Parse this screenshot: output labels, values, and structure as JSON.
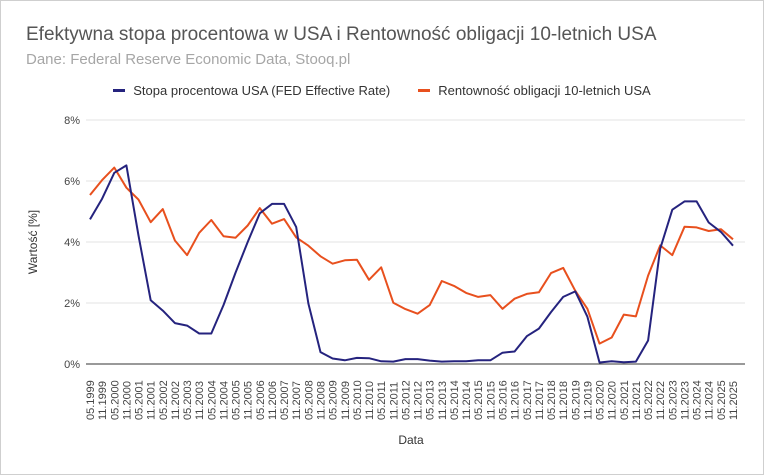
{
  "chart_data": {
    "type": "line",
    "title": "Efektywna stopa procentowa w USA i Rentowność obligacji 10-letnich USA",
    "subtitle": "Dane: Federal Reserve Economic Data, Stooq.pl",
    "xlabel": "Data",
    "ylabel": "Wartość [%]",
    "ylim": [
      0,
      8
    ],
    "yticks": [
      "0%",
      "2%",
      "4%",
      "6%",
      "8%"
    ],
    "grid": true,
    "legend_position": "top-center",
    "x": [
      "05.1999",
      "11.1999",
      "05.2000",
      "11.2000",
      "05.2001",
      "11.2001",
      "05.2002",
      "11.2002",
      "05.2003",
      "11.2003",
      "05.2004",
      "11.2004",
      "05.2005",
      "11.2005",
      "05.2006",
      "11.2006",
      "05.2007",
      "11.2007",
      "05.2008",
      "11.2008",
      "05.2009",
      "11.2009",
      "05.2010",
      "11.2010",
      "05.2011",
      "11.2011",
      "05.2012",
      "11.2012",
      "05.2013",
      "11.2013",
      "05.2014",
      "11.2014",
      "05.2015",
      "11.2015",
      "05.2016",
      "11.2016",
      "05.2017",
      "11.2017",
      "05.2018",
      "11.2018",
      "05.2019",
      "11.2019",
      "05.2020",
      "11.2020",
      "05.2021",
      "11.2021",
      "05.2022",
      "11.2022",
      "05.2023",
      "11.2023",
      "05.2024",
      "11.2024",
      "05.2025",
      "11.2025"
    ],
    "series": [
      {
        "name": "Stopa procentowa USA (FED Effective Rate)",
        "color": "#25237e",
        "values": [
          4.74,
          5.42,
          6.27,
          6.51,
          4.21,
          2.09,
          1.75,
          1.34,
          1.26,
          1.0,
          1.0,
          1.93,
          3.0,
          4.0,
          4.94,
          5.25,
          5.25,
          4.49,
          1.98,
          0.39,
          0.18,
          0.12,
          0.2,
          0.19,
          0.09,
          0.08,
          0.16,
          0.16,
          0.11,
          0.08,
          0.09,
          0.09,
          0.12,
          0.12,
          0.37,
          0.41,
          0.91,
          1.16,
          1.7,
          2.2,
          2.38,
          1.55,
          0.05,
          0.09,
          0.06,
          0.08,
          0.77,
          3.78,
          5.06,
          5.33,
          5.33,
          4.64,
          4.33,
          3.88
        ]
      },
      {
        "name": "Rentowność obligacji 10-letnich USA",
        "color": "#e8501e",
        "values": [
          5.54,
          6.03,
          6.44,
          5.78,
          5.39,
          4.65,
          5.08,
          4.05,
          3.57,
          4.3,
          4.72,
          4.19,
          4.14,
          4.54,
          5.11,
          4.6,
          4.75,
          4.15,
          3.88,
          3.53,
          3.29,
          3.4,
          3.42,
          2.76,
          3.17,
          2.01,
          1.8,
          1.65,
          1.93,
          2.72,
          2.56,
          2.33,
          2.2,
          2.26,
          1.81,
          2.14,
          2.3,
          2.35,
          2.98,
          3.15,
          2.4,
          1.81,
          0.67,
          0.87,
          1.62,
          1.56,
          2.9,
          3.89,
          3.57,
          4.5,
          4.48,
          4.36,
          4.42,
          4.09
        ]
      }
    ]
  }
}
